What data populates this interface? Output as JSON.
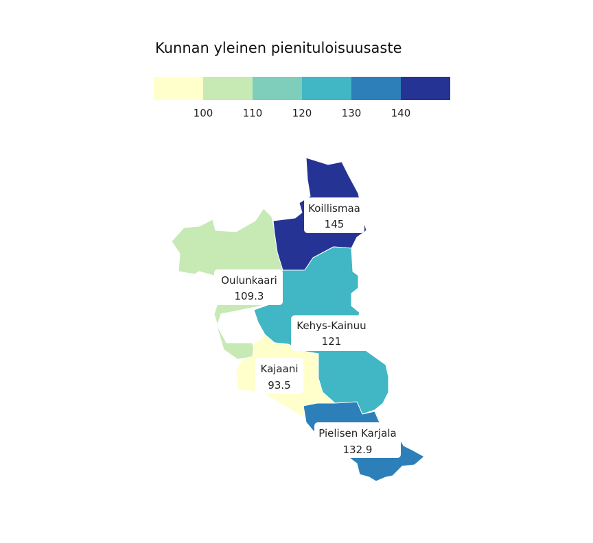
{
  "legend": {
    "title": "Kunnan yleinen pienituloisuusaste",
    "breaks": [
      100,
      110,
      120,
      130,
      140
    ],
    "tick_labels": [
      "100",
      "110",
      "120",
      "130",
      "140"
    ],
    "colors": [
      "#ffffcc",
      "#c7e9b4",
      "#7fcdbb",
      "#41b6c4",
      "#2c7fb8",
      "#253494"
    ]
  },
  "regions": [
    {
      "id": "koillismaa",
      "name": "Koillismaa",
      "value": 145,
      "value_label": "145",
      "color": "#253494"
    },
    {
      "id": "oulunkaari",
      "name": "Oulunkaari",
      "value": 109.3,
      "value_label": "109.3",
      "color": "#c7e9b4"
    },
    {
      "id": "kehys-kainuu",
      "name": "Kehys-Kainuu",
      "value": 121,
      "value_label": "121",
      "color": "#41b6c4"
    },
    {
      "id": "kajaani",
      "name": "Kajaani",
      "value": 93.5,
      "value_label": "93.5",
      "color": "#ffffcc"
    },
    {
      "id": "pielisen-karjala",
      "name": "Pielisen Karjala",
      "value": 132.9,
      "value_label": "132.9",
      "color": "#2c7fb8"
    }
  ]
}
